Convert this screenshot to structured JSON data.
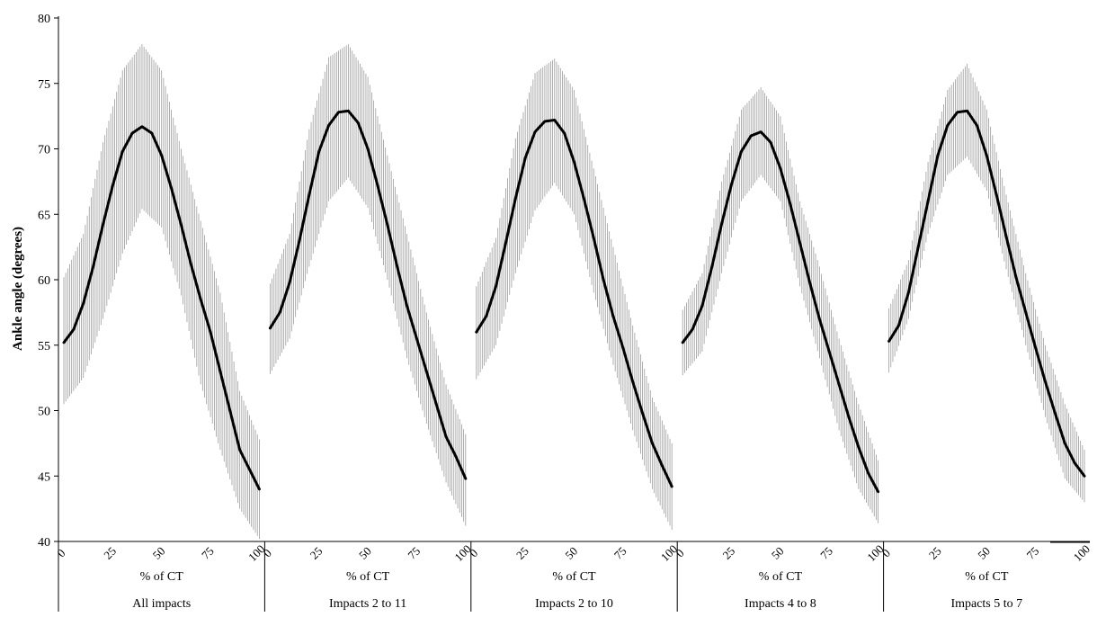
{
  "chart_data": {
    "type": "line",
    "ylabel": "Ankle angle (degrees)",
    "ylim": [
      40,
      80
    ],
    "yticks": [
      40,
      45,
      50,
      55,
      60,
      65,
      70,
      75,
      80
    ],
    "xlim": [
      0,
      100
    ],
    "xticks": [
      0,
      25,
      50,
      75,
      100
    ],
    "grid": false,
    "error_band": "vertical-lines",
    "panels": [
      {
        "xlabel": "% of CT",
        "group_label": "All impacts",
        "mean": [
          [
            0,
            55.2
          ],
          [
            5,
            56.2
          ],
          [
            10,
            58.2
          ],
          [
            15,
            61.0
          ],
          [
            20,
            64.2
          ],
          [
            25,
            67.2
          ],
          [
            30,
            69.8
          ],
          [
            35,
            71.2
          ],
          [
            40,
            71.7
          ],
          [
            45,
            71.2
          ],
          [
            50,
            69.5
          ],
          [
            55,
            67.0
          ],
          [
            60,
            64.2
          ],
          [
            65,
            61.2
          ],
          [
            70,
            58.5
          ],
          [
            75,
            56.0
          ],
          [
            80,
            53.0
          ],
          [
            85,
            50.0
          ],
          [
            90,
            47.0
          ],
          [
            95,
            45.5
          ],
          [
            100,
            44.0
          ]
        ],
        "band": [
          [
            0,
            50.5,
            60.2
          ],
          [
            10,
            52.5,
            63.5
          ],
          [
            20,
            57.0,
            70.5
          ],
          [
            30,
            62.0,
            76.0
          ],
          [
            40,
            65.4,
            78.0
          ],
          [
            50,
            64.0,
            76.0
          ],
          [
            60,
            58.8,
            70.0
          ],
          [
            70,
            52.0,
            64.5
          ],
          [
            80,
            47.0,
            59.0
          ],
          [
            90,
            42.5,
            51.5
          ],
          [
            100,
            40.2,
            47.8
          ]
        ]
      },
      {
        "xlabel": "% of CT",
        "group_label": "Impacts 2 to 11",
        "mean": [
          [
            0,
            56.3
          ],
          [
            5,
            57.5
          ],
          [
            10,
            59.8
          ],
          [
            15,
            63.0
          ],
          [
            20,
            66.5
          ],
          [
            25,
            69.8
          ],
          [
            30,
            71.8
          ],
          [
            35,
            72.8
          ],
          [
            40,
            72.9
          ],
          [
            45,
            72.0
          ],
          [
            50,
            70.0
          ],
          [
            55,
            67.2
          ],
          [
            60,
            64.2
          ],
          [
            65,
            61.0
          ],
          [
            70,
            58.0
          ],
          [
            75,
            55.5
          ],
          [
            80,
            53.0
          ],
          [
            85,
            50.5
          ],
          [
            90,
            48.0
          ],
          [
            95,
            46.5
          ],
          [
            100,
            44.8
          ]
        ],
        "band": [
          [
            0,
            52.8,
            59.7
          ],
          [
            10,
            55.5,
            63.5
          ],
          [
            20,
            61.0,
            71.5
          ],
          [
            30,
            66.0,
            77.0
          ],
          [
            40,
            67.8,
            78.0
          ],
          [
            50,
            65.5,
            75.5
          ],
          [
            60,
            60.0,
            69.5
          ],
          [
            70,
            54.0,
            63.5
          ],
          [
            80,
            49.0,
            57.5
          ],
          [
            90,
            44.5,
            52.0
          ],
          [
            100,
            41.2,
            48.2
          ]
        ]
      },
      {
        "xlabel": "% of CT",
        "group_label": "Impacts 2 to 10",
        "mean": [
          [
            0,
            56.0
          ],
          [
            5,
            57.2
          ],
          [
            10,
            59.5
          ],
          [
            15,
            62.8
          ],
          [
            20,
            66.2
          ],
          [
            25,
            69.3
          ],
          [
            30,
            71.3
          ],
          [
            35,
            72.1
          ],
          [
            40,
            72.2
          ],
          [
            45,
            71.2
          ],
          [
            50,
            69.0
          ],
          [
            55,
            66.2
          ],
          [
            60,
            63.2
          ],
          [
            65,
            60.0
          ],
          [
            70,
            57.2
          ],
          [
            75,
            54.8
          ],
          [
            80,
            52.2
          ],
          [
            85,
            49.8
          ],
          [
            90,
            47.5
          ],
          [
            95,
            45.8
          ],
          [
            100,
            44.2
          ]
        ],
        "band": [
          [
            0,
            52.4,
            59.5
          ],
          [
            10,
            55.0,
            63.2
          ],
          [
            20,
            60.5,
            70.8
          ],
          [
            30,
            65.3,
            75.8
          ],
          [
            40,
            67.4,
            76.9
          ],
          [
            50,
            65.0,
            74.5
          ],
          [
            60,
            59.0,
            68.5
          ],
          [
            70,
            53.5,
            62.5
          ],
          [
            80,
            48.5,
            56.5
          ],
          [
            90,
            44.0,
            51.0
          ],
          [
            100,
            40.9,
            47.5
          ]
        ]
      },
      {
        "xlabel": "% of CT",
        "group_label": "Impacts 4 to 8",
        "mean": [
          [
            0,
            55.2
          ],
          [
            5,
            56.2
          ],
          [
            10,
            58.0
          ],
          [
            15,
            61.0
          ],
          [
            20,
            64.3
          ],
          [
            25,
            67.3
          ],
          [
            30,
            69.8
          ],
          [
            35,
            71.0
          ],
          [
            40,
            71.3
          ],
          [
            45,
            70.5
          ],
          [
            50,
            68.5
          ],
          [
            55,
            65.8
          ],
          [
            60,
            62.8
          ],
          [
            65,
            59.8
          ],
          [
            70,
            57.0
          ],
          [
            75,
            54.5
          ],
          [
            80,
            52.0
          ],
          [
            85,
            49.5
          ],
          [
            90,
            47.2
          ],
          [
            95,
            45.2
          ],
          [
            100,
            43.8
          ]
        ],
        "band": [
          [
            0,
            52.7,
            57.7
          ],
          [
            10,
            54.5,
            60.5
          ],
          [
            20,
            60.5,
            67.5
          ],
          [
            30,
            66.0,
            73.0
          ],
          [
            40,
            68.0,
            74.7
          ],
          [
            50,
            66.0,
            72.5
          ],
          [
            60,
            59.5,
            66.0
          ],
          [
            70,
            54.0,
            61.0
          ],
          [
            80,
            48.5,
            55.5
          ],
          [
            90,
            44.0,
            50.5
          ],
          [
            100,
            41.4,
            46.2
          ]
        ]
      },
      {
        "xlabel": "% of CT",
        "group_label": "Impacts 5 to 7",
        "mean": [
          [
            0,
            55.3
          ],
          [
            5,
            56.5
          ],
          [
            10,
            59.0
          ],
          [
            15,
            62.5
          ],
          [
            20,
            66.0
          ],
          [
            25,
            69.5
          ],
          [
            30,
            71.8
          ],
          [
            35,
            72.8
          ],
          [
            40,
            72.9
          ],
          [
            45,
            71.8
          ],
          [
            50,
            69.5
          ],
          [
            55,
            66.5
          ],
          [
            60,
            63.3
          ],
          [
            65,
            60.2
          ],
          [
            70,
            57.5
          ],
          [
            75,
            54.8
          ],
          [
            80,
            52.2
          ],
          [
            85,
            49.8
          ],
          [
            90,
            47.5
          ],
          [
            95,
            46.0
          ],
          [
            100,
            45.0
          ]
        ],
        "band": [
          [
            0,
            52.9,
            57.8
          ],
          [
            10,
            57.0,
            61.5
          ],
          [
            20,
            63.5,
            69.0
          ],
          [
            30,
            68.0,
            74.5
          ],
          [
            40,
            69.4,
            76.5
          ],
          [
            50,
            66.8,
            73.0
          ],
          [
            60,
            60.8,
            66.5
          ],
          [
            70,
            55.0,
            60.5
          ],
          [
            80,
            49.5,
            55.0
          ],
          [
            90,
            44.8,
            50.5
          ],
          [
            100,
            43.0,
            47.0
          ]
        ]
      }
    ]
  }
}
